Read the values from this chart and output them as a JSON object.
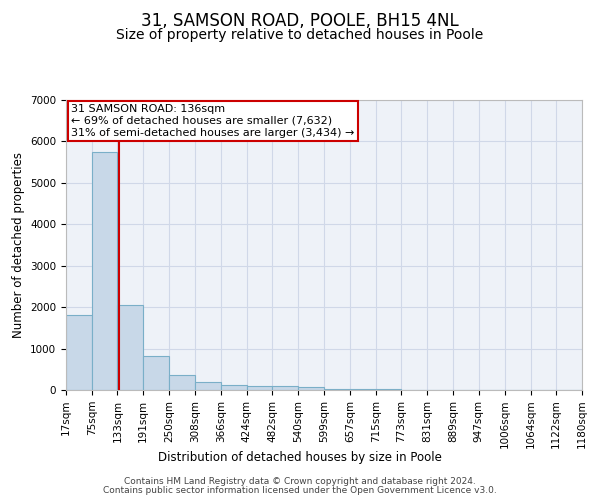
{
  "title": "31, SAMSON ROAD, POOLE, BH15 4NL",
  "subtitle": "Size of property relative to detached houses in Poole",
  "xlabel": "Distribution of detached houses by size in Poole",
  "ylabel": "Number of detached properties",
  "bin_edges": [
    17,
    75,
    133,
    191,
    250,
    308,
    366,
    424,
    482,
    540,
    599,
    657,
    715,
    773,
    831,
    889,
    947,
    1006,
    1064,
    1122,
    1180
  ],
  "bar_heights": [
    1800,
    5750,
    2050,
    820,
    360,
    190,
    110,
    90,
    90,
    65,
    30,
    25,
    15,
    10,
    8,
    6,
    5,
    4,
    3,
    2
  ],
  "bar_color": "#c8d8e8",
  "bar_edgecolor": "#7aafc8",
  "grid_color": "#d0d8e8",
  "bg_color": "#eef2f8",
  "vline_x": 136,
  "vline_color": "#cc0000",
  "annotation_line1": "31 SAMSON ROAD: 136sqm",
  "annotation_line2": "← 69% of detached houses are smaller (7,632)",
  "annotation_line3": "31% of semi-detached houses are larger (3,434) →",
  "annotation_box_color": "#cc0000",
  "annotation_text_color": "#000000",
  "ylim": [
    0,
    7000
  ],
  "yticks": [
    0,
    1000,
    2000,
    3000,
    4000,
    5000,
    6000,
    7000
  ],
  "footer_line1": "Contains HM Land Registry data © Crown copyright and database right 2024.",
  "footer_line2": "Contains public sector information licensed under the Open Government Licence v3.0.",
  "title_fontsize": 12,
  "subtitle_fontsize": 10,
  "axis_label_fontsize": 8.5,
  "tick_fontsize": 7.5,
  "annotation_fontsize": 8,
  "footer_fontsize": 6.5
}
